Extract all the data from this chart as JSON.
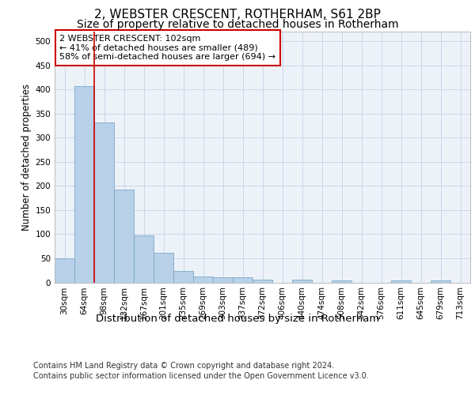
{
  "title1": "2, WEBSTER CRESCENT, ROTHERHAM, S61 2BP",
  "title2": "Size of property relative to detached houses in Rotherham",
  "xlabel": "Distribution of detached houses by size in Rotherham",
  "ylabel": "Number of detached properties",
  "categories": [
    "30sqm",
    "64sqm",
    "98sqm",
    "132sqm",
    "167sqm",
    "201sqm",
    "235sqm",
    "269sqm",
    "303sqm",
    "337sqm",
    "372sqm",
    "406sqm",
    "440sqm",
    "474sqm",
    "508sqm",
    "542sqm",
    "576sqm",
    "611sqm",
    "645sqm",
    "679sqm",
    "713sqm"
  ],
  "values": [
    50,
    407,
    332,
    192,
    97,
    62,
    24,
    12,
    10,
    10,
    6,
    0,
    5,
    0,
    4,
    0,
    0,
    4,
    0,
    4,
    0
  ],
  "bar_color": "#b8d0e8",
  "bar_edge_color": "#7aaac8",
  "vline_x": 1.5,
  "vline_color": "#cc0000",
  "annotation_text": "2 WEBSTER CRESCENT: 102sqm\n← 41% of detached houses are smaller (489)\n58% of semi-detached houses are larger (694) →",
  "annotation_box_color": "#ffffff",
  "annotation_box_edge": "#cc0000",
  "ylim": [
    0,
    520
  ],
  "yticks": [
    0,
    50,
    100,
    150,
    200,
    250,
    300,
    350,
    400,
    450,
    500
  ],
  "grid_color": "#c8d8ea",
  "background_color": "#edf2f9",
  "footer1": "Contains HM Land Registry data © Crown copyright and database right 2024.",
  "footer2": "Contains public sector information licensed under the Open Government Licence v3.0.",
  "title1_fontsize": 11,
  "title2_fontsize": 10,
  "xlabel_fontsize": 9.5,
  "ylabel_fontsize": 8.5,
  "tick_fontsize": 7.5,
  "annotation_fontsize": 8,
  "footer_fontsize": 7
}
